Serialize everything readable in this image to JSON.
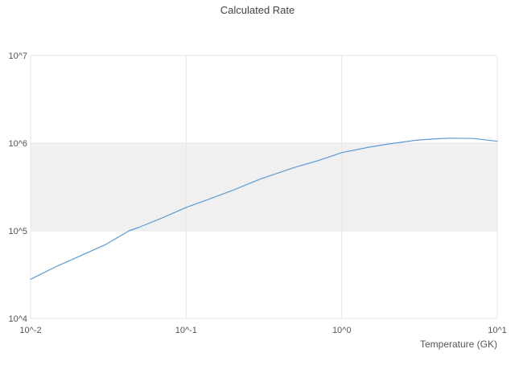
{
  "colors": {
    "line": "#5b9bd5",
    "band": "#f0f0f0",
    "grid": "#e6e6e6",
    "axis_text": "#555555",
    "title_text": "#444444",
    "background": "#ffffff"
  },
  "chart_data": {
    "type": "line",
    "title": "Calculated Rate",
    "xlabel": "Temperature (GK)",
    "ylabel": "",
    "x_scale": "log",
    "y_scale": "log",
    "xlim": [
      0.01,
      10
    ],
    "ylim": [
      10000,
      10000000
    ],
    "grid": true,
    "legend": "none",
    "x_tick_values": [
      0.01,
      0.1,
      1,
      10
    ],
    "x_tick_labels": [
      "10^-2",
      "10^-1",
      "10^0",
      "10^1"
    ],
    "y_tick_values": [
      10000,
      100000,
      1000000,
      10000000
    ],
    "y_tick_labels": [
      "10^4",
      "10^5",
      "10^6",
      "10^7"
    ],
    "shaded_bands": [
      {
        "y_from": 100000,
        "y_to": 1000000,
        "color": "#f0f0f0"
      }
    ],
    "series": [
      {
        "name": "calculated-rate",
        "color": "#5b9bd5",
        "x": [
          0.01,
          0.015,
          0.02,
          0.03,
          0.043,
          0.05,
          0.07,
          0.1,
          0.15,
          0.2,
          0.3,
          0.5,
          0.7,
          1.0,
          1.5,
          2.0,
          3.0,
          4.0,
          5.0,
          7.0,
          10.0
        ],
        "y": [
          28000,
          40000,
          50000,
          69000,
          100000,
          110000,
          140000,
          185000,
          240000,
          290000,
          390000,
          530000,
          630000,
          780000,
          900000,
          980000,
          1080000,
          1120000,
          1140000,
          1130000,
          1050000
        ]
      }
    ]
  }
}
